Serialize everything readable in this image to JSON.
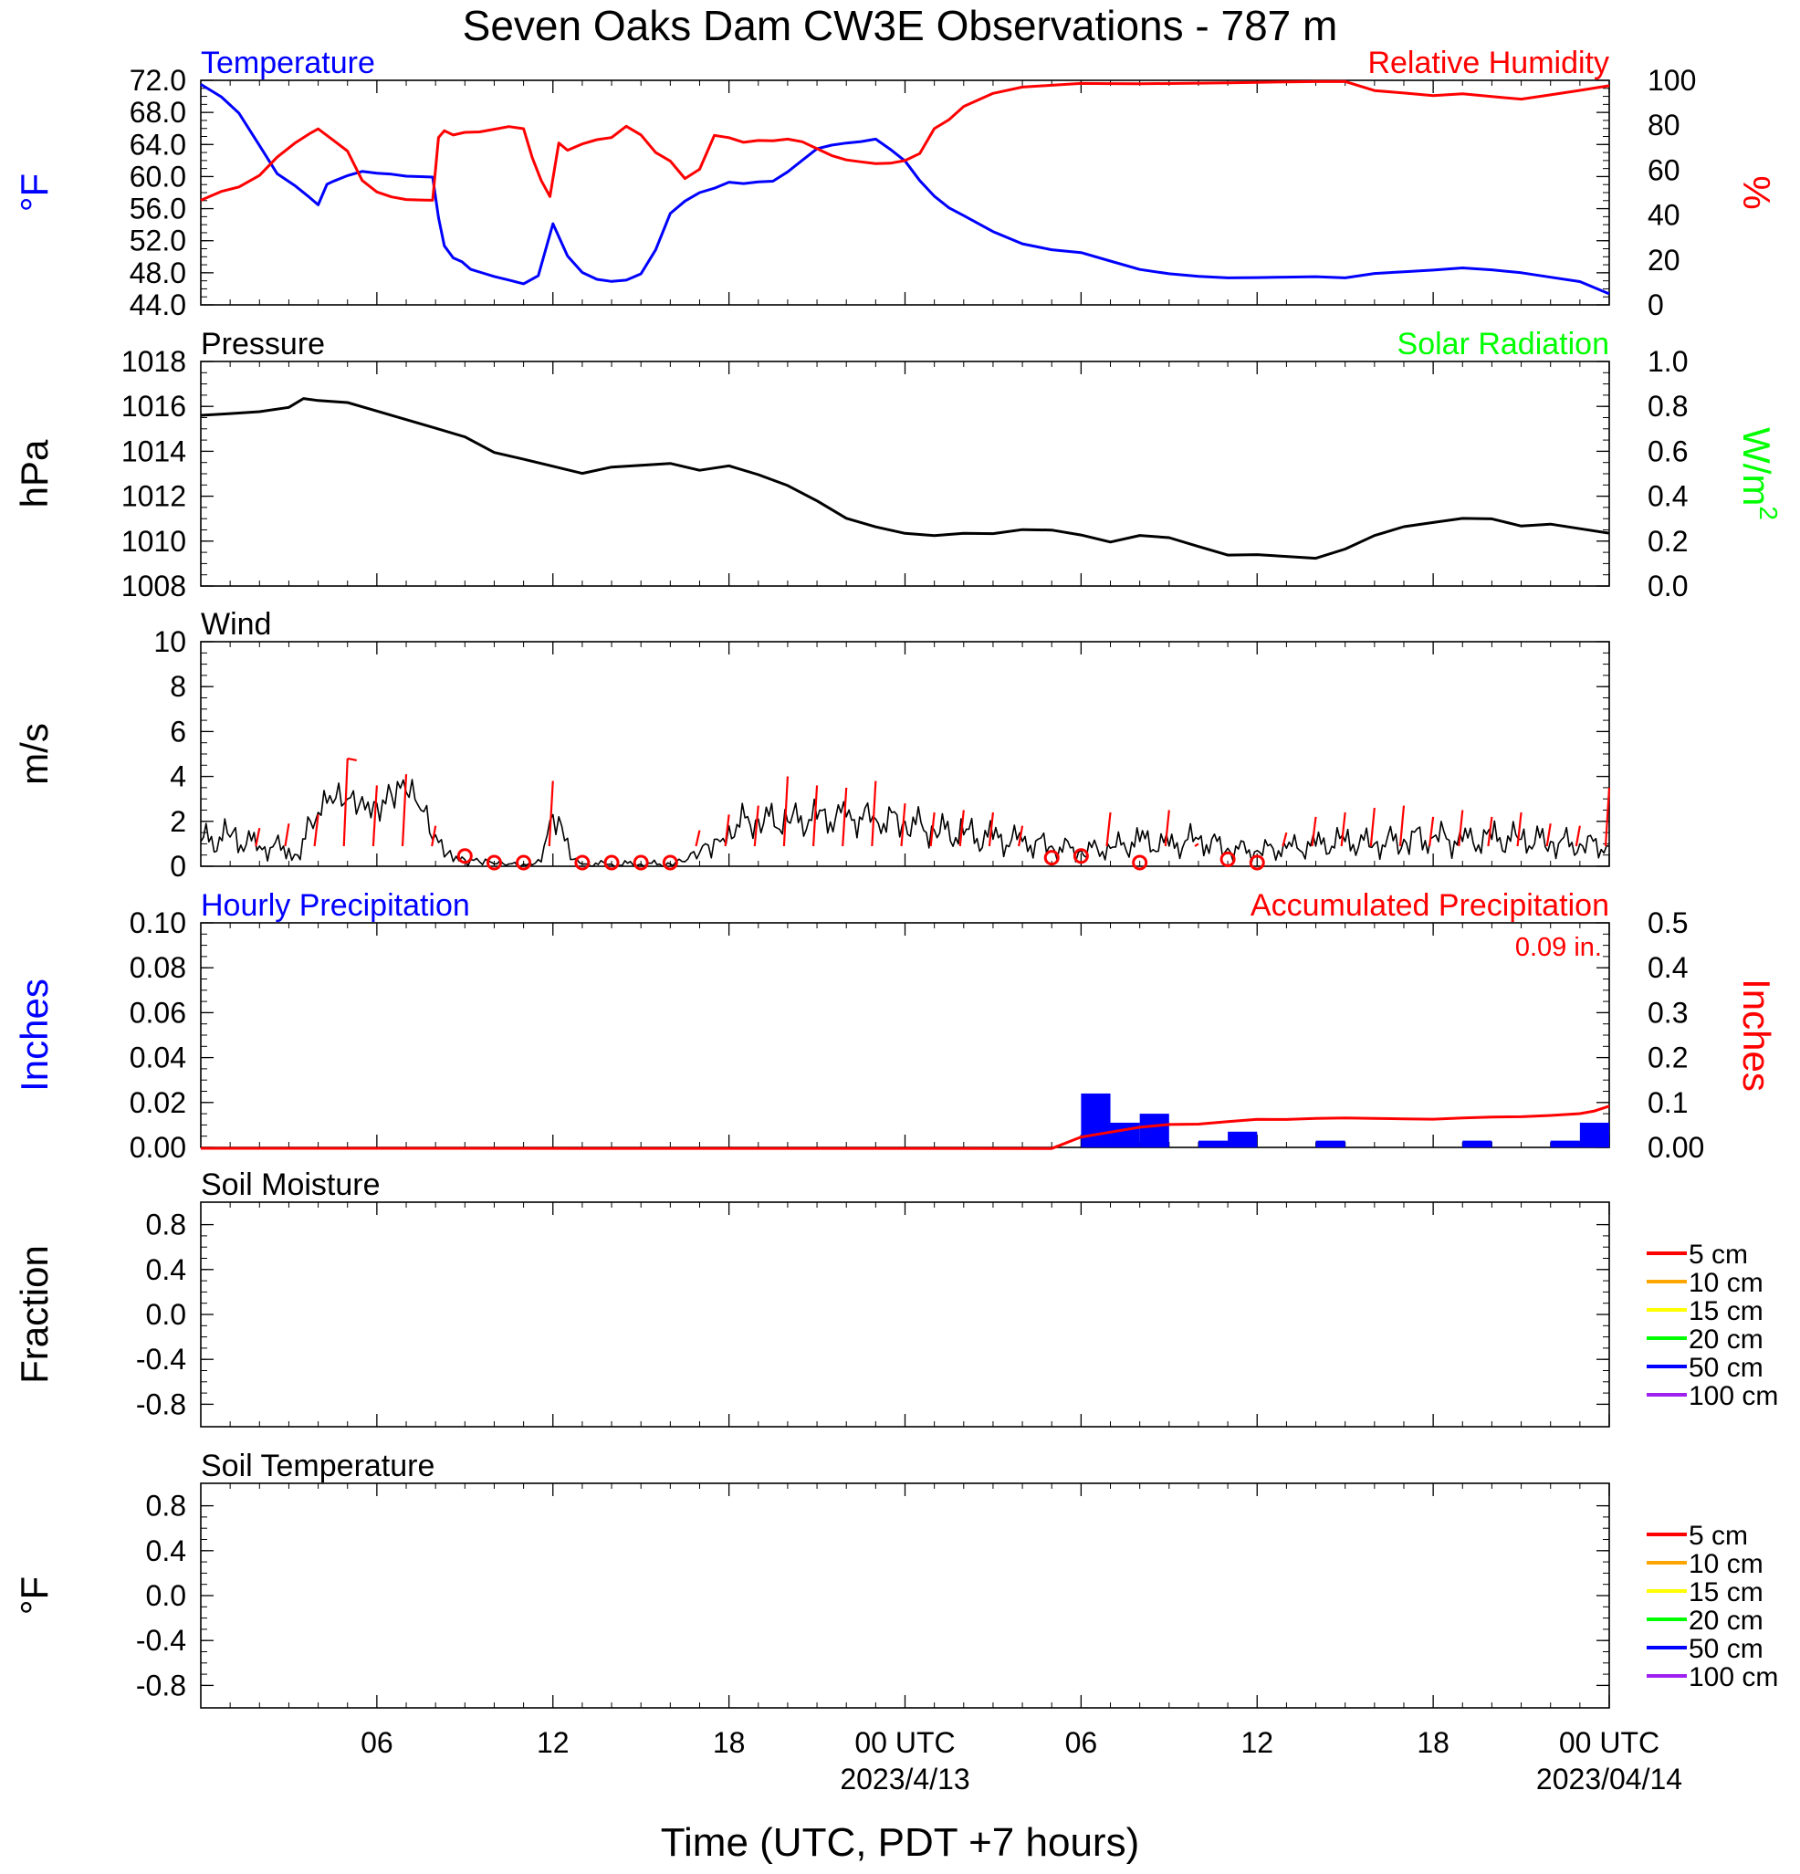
{
  "title": "Seven Oaks Dam CW3E Observations - 787 m",
  "xlabel": "Time (UTC, PDT +7 hours)",
  "x_ticks": [
    {
      "hour": 6,
      "label": "06",
      "date": ""
    },
    {
      "hour": 12,
      "label": "12",
      "date": ""
    },
    {
      "hour": 18,
      "label": "18",
      "date": ""
    },
    {
      "hour": 24,
      "label": "00 UTC",
      "date": "2023/4/13"
    },
    {
      "hour": 30,
      "label": "06",
      "date": ""
    },
    {
      "hour": 36,
      "label": "12",
      "date": ""
    },
    {
      "hour": 42,
      "label": "18",
      "date": ""
    },
    {
      "hour": 48,
      "label": "00 UTC",
      "date": "2023/04/14"
    }
  ],
  "legend": {
    "entries": [
      {
        "label": "5 cm",
        "color": "#ff0000"
      },
      {
        "label": "10 cm",
        "color": "#ffa500"
      },
      {
        "label": "15 cm",
        "color": "#ffff00"
      },
      {
        "label": "20 cm",
        "color": "#00ff00"
      },
      {
        "label": "50 cm",
        "color": "#0000ff"
      },
      {
        "label": "100 cm",
        "color": "#a020f0"
      }
    ]
  },
  "chart_data": [
    {
      "type": "line",
      "title_left": "Temperature",
      "title_right": "Relative Humidity",
      "ylabel": "°F",
      "ylabel_right": "%",
      "ylim": [
        44,
        72
      ],
      "ylim_right": [
        0,
        100
      ],
      "yticks": [
        "72.0",
        "68.0",
        "64.0",
        "60.0",
        "56.0",
        "52.0",
        "48.0",
        "44.0"
      ],
      "yticks_right": [
        "100",
        "80",
        "60",
        "40",
        "20",
        "0"
      ],
      "series": [
        {
          "name": "Temperature",
          "color": "#0000ff",
          "axis": "left",
          "x": [
            0,
            0.7,
            1.3,
            2,
            2.6,
            3.2,
            3.7,
            4,
            4.3,
            4.5,
            5,
            5.5,
            6,
            6.5,
            7,
            7.5,
            7.9,
            8.1,
            8.3,
            8.6,
            8.9,
            9.2,
            9.6,
            10,
            10.5,
            11,
            11.5,
            12,
            12.5,
            13,
            13.5,
            14,
            14.5,
            15,
            15.5,
            16,
            16.5,
            17,
            17.5,
            18,
            18.5,
            19,
            19.5,
            20,
            20.5,
            21,
            21.5,
            22,
            22.5,
            23,
            23.5,
            24,
            24.5,
            25,
            25.5,
            26,
            27,
            28,
            29,
            30,
            31,
            32,
            33,
            34,
            35,
            36,
            37,
            38,
            39,
            40,
            41,
            42,
            43,
            44,
            45,
            46,
            47,
            48
          ],
          "y": [
            71.5,
            70,
            68,
            64,
            60.5,
            59,
            57.5,
            56.5,
            59,
            59.3,
            60,
            60.5,
            60.3,
            60.2,
            60,
            60,
            60,
            55,
            51.5,
            50,
            49.5,
            48.5,
            48,
            47.5,
            47,
            46.5,
            47.5,
            54,
            50,
            48,
            47.2,
            47,
            47.2,
            48,
            51,
            55.5,
            57,
            58,
            58.5,
            59.2,
            59,
            59.2,
            59.3,
            60.5,
            62,
            63.5,
            64,
            64.3,
            64.5,
            64.8,
            63.5,
            62,
            59.5,
            57.5,
            56,
            55,
            53,
            51.5,
            50.8,
            50.5,
            49.5,
            48.5,
            48,
            47.7,
            47.5,
            47.5,
            47.5,
            47.5,
            47.3,
            47.8,
            48,
            48.2,
            48.5,
            48.3,
            48,
            47.5,
            47,
            45.5
          ]
        },
        {
          "name": "Relative Humidity",
          "color": "#ff0000",
          "axis": "right",
          "x": [
            0,
            0.7,
            1.3,
            2,
            2.6,
            3.2,
            3.7,
            4,
            4.5,
            5,
            5.5,
            6,
            6.5,
            7,
            7.5,
            7.9,
            8.1,
            8.3,
            8.6,
            9,
            9.5,
            10,
            10.5,
            11,
            11.3,
            11.6,
            11.9,
            12.2,
            12.5,
            13,
            13.5,
            14,
            14.5,
            15,
            15.5,
            16,
            16.5,
            17,
            17.5,
            18,
            18.5,
            19,
            19.5,
            20,
            20.5,
            21,
            21.5,
            22,
            22.5,
            23,
            23.5,
            24,
            24.5,
            25,
            25.5,
            26,
            27,
            28,
            29,
            30,
            31,
            32,
            33,
            34,
            35,
            36,
            37,
            38,
            39,
            40,
            41,
            42,
            43,
            44,
            45,
            46,
            47,
            48
          ],
          "y": [
            47,
            51,
            53,
            58,
            66,
            72,
            76,
            78,
            73,
            68,
            55,
            50,
            48,
            47,
            47,
            47,
            75,
            78,
            76,
            77,
            77,
            78,
            79,
            78,
            65,
            55,
            48,
            72,
            69,
            72,
            74,
            75,
            80,
            76,
            68,
            64,
            56,
            60,
            75,
            74,
            72,
            73,
            73,
            74,
            73,
            70,
            67,
            65,
            64,
            63,
            63,
            64,
            67,
            78,
            82,
            88,
            94,
            97,
            98,
            99,
            99,
            99,
            99,
            99,
            99,
            99,
            99,
            99,
            99,
            95,
            94,
            93,
            94,
            93,
            92,
            94,
            96,
            98
          ]
        }
      ]
    },
    {
      "type": "line",
      "title_left": "Pressure",
      "title_right": "Solar Radiation",
      "ylabel": "hPa",
      "ylabel_right": "W/m",
      "ylabel_right_sup": "2",
      "ylim": [
        1008,
        1018
      ],
      "ylim_right": [
        0,
        1
      ],
      "yticks": [
        "1018",
        "1016",
        "1014",
        "1012",
        "1010",
        "1008"
      ],
      "yticks_right": [
        "1.0",
        "0.8",
        "0.6",
        "0.4",
        "0.2",
        "0.0"
      ],
      "series": [
        {
          "name": "Pressure",
          "color": "#000000",
          "axis": "left",
          "x": [
            0,
            1,
            2,
            3,
            3.5,
            4,
            5,
            6,
            7,
            8,
            9,
            10,
            11,
            12,
            13,
            14,
            15,
            16,
            17,
            18,
            19,
            20,
            21,
            22,
            23,
            24,
            25,
            26,
            27,
            28,
            29,
            30,
            31,
            32,
            33,
            34,
            35,
            36,
            37,
            38,
            39,
            40,
            41,
            42,
            43,
            44,
            45,
            46,
            47,
            48
          ],
          "y": [
            1015.6,
            1015.7,
            1015.8,
            1016,
            1016.4,
            1016.3,
            1016.2,
            1015.8,
            1015.4,
            1015,
            1014.6,
            1013.9,
            1013.6,
            1013.3,
            1013,
            1013.3,
            1013.4,
            1013.5,
            1013.2,
            1013.4,
            1013,
            1012.5,
            1011.8,
            1011,
            1010.6,
            1010.3,
            1010.2,
            1010.3,
            1010.3,
            1010.5,
            1010.5,
            1010.3,
            1010,
            1010.3,
            1010.2,
            1009.8,
            1009.4,
            1009.4,
            1009.3,
            1009.2,
            1009.6,
            1010.2,
            1010.6,
            1010.8,
            1011,
            1011,
            1010.7,
            1010.8,
            1010.6,
            1010.4
          ]
        }
      ]
    },
    {
      "type": "line",
      "title_left": "Wind",
      "ylabel": "m/s",
      "ylim": [
        0,
        10
      ],
      "yticks": [
        "10",
        "8",
        "6",
        "4",
        "2",
        "0"
      ],
      "series": [
        {
          "name": "Wind",
          "color": "#000000",
          "axis": "left",
          "x": [
            0,
            1,
            2,
            3,
            3.3,
            4,
            4.5,
            5,
            5.5,
            6,
            6.5,
            7,
            7.5,
            8,
            8.5,
            9,
            9.5,
            10,
            10.5,
            11,
            11.5,
            12,
            12.3,
            12.6,
            13,
            14,
            15,
            16,
            16.5,
            17,
            17.5,
            18,
            19,
            20,
            21,
            22,
            23,
            24,
            25,
            26,
            27,
            28,
            29,
            30,
            31,
            32,
            33,
            34,
            35,
            36,
            37,
            38,
            39,
            40,
            41,
            42,
            43,
            44,
            45,
            46,
            47,
            48
          ],
          "y": [
            1.1,
            1.3,
            0.9,
            0.8,
            0.5,
            2.4,
            2.8,
            3,
            3.1,
            2.8,
            3.2,
            3.3,
            2.5,
            1.4,
            0.7,
            0.3,
            0.2,
            0.1,
            0.1,
            0.1,
            0.3,
            2.3,
            1.8,
            0.3,
            0.1,
            0.1,
            0.1,
            0.1,
            0.2,
            0.6,
            1.2,
            1.8,
            2.1,
            2,
            2.1,
            2.2,
            2.1,
            2,
            1.6,
            1.4,
            1.2,
            1.1,
            0.9,
            0.7,
            0.8,
            1.1,
            0.9,
            1.2,
            0.8,
            0.7,
            0.8,
            0.9,
            1.1,
            1,
            1.2,
            1.3,
            1.1,
            1.2,
            1.2,
            1.1,
            1,
            0.9
          ]
        },
        {
          "name": "Wind barbs",
          "color": "#ff0000",
          "type": "wind-barb",
          "x": [
            2,
            3,
            4,
            5,
            6,
            7,
            8,
            9,
            10,
            11,
            12,
            13,
            14,
            15,
            16,
            17,
            18,
            19,
            20,
            21,
            22,
            23,
            24,
            25,
            26,
            27,
            28,
            29,
            30,
            31,
            32,
            33,
            34,
            35,
            36,
            37,
            38,
            39,
            40,
            41,
            42,
            43,
            44,
            45,
            46,
            47,
            48
          ],
          "y": [
            1.7,
            1.9,
            2.3,
            4.8,
            3.6,
            4.1,
            1.8,
            0.4,
            0,
            0,
            3.8,
            0,
            0,
            0,
            0,
            1.6,
            2.3,
            2.7,
            4,
            3.6,
            3.5,
            3.8,
            2.8,
            2.4,
            2.5,
            2.4,
            1.8,
            0.3,
            0.4,
            2.4,
            0,
            2.5,
            1,
            0.2,
            0,
            1.5,
            2.2,
            2.4,
            2.6,
            2.7,
            2.2,
            2.5,
            2.2,
            2.4,
            1.9,
            1.8,
            3.5
          ],
          "calm": [
            false,
            false,
            false,
            false,
            false,
            false,
            false,
            true,
            true,
            true,
            false,
            true,
            true,
            true,
            true,
            false,
            false,
            false,
            false,
            false,
            false,
            false,
            false,
            false,
            false,
            false,
            false,
            true,
            true,
            false,
            true,
            false,
            false,
            true,
            true,
            false,
            false,
            false,
            false,
            false,
            false,
            false,
            false,
            false,
            false,
            false,
            false
          ]
        }
      ]
    },
    {
      "type": "bar",
      "title_left": "Hourly Precipitation",
      "title_right": "Accumulated Precipitation",
      "annotation": "0.09 in.",
      "ylabel": "Inches",
      "ylabel_right": "Inches",
      "ylim": [
        0,
        0.1
      ],
      "ylim_right": [
        0,
        0.5
      ],
      "yticks": [
        "0.10",
        "0.08",
        "0.06",
        "0.04",
        "0.02",
        "0.00"
      ],
      "yticks_right": [
        "0.5",
        "0.4",
        "0.3",
        "0.2",
        "0.1",
        "0.00"
      ],
      "series": [
        {
          "name": "Hourly Precipitation",
          "color": "#0000ff",
          "axis": "left",
          "x": [
            29,
            30,
            31,
            32,
            33,
            34,
            35,
            36,
            37,
            38,
            39,
            40,
            41,
            42,
            43,
            44,
            45,
            46,
            47
          ],
          "values": [
            0,
            0.024,
            0.011,
            0.015,
            0,
            0.003,
            0.007,
            0,
            0,
            0.003,
            0,
            0,
            0,
            0,
            0.003,
            0,
            0,
            0.003,
            0.011
          ]
        },
        {
          "name": "Accumulated Precipitation",
          "color": "#ff0000",
          "axis": "right",
          "x": [
            0,
            29,
            29.2,
            30,
            31,
            32,
            33,
            34,
            35,
            36,
            37,
            38,
            39,
            40,
            41,
            42,
            43,
            44,
            45,
            46,
            47,
            47.5,
            48
          ],
          "y": [
            0,
            0,
            0.005,
            0.025,
            0.035,
            0.045,
            0.05,
            0.05,
            0.055,
            0.06,
            0.06,
            0.063,
            0.065,
            0.065,
            0.065,
            0.065,
            0.068,
            0.07,
            0.07,
            0.072,
            0.075,
            0.08,
            0.09
          ]
        }
      ]
    },
    {
      "type": "line",
      "title_left": "Soil Moisture",
      "ylabel": "Fraction",
      "ylim": [
        -1,
        1
      ],
      "yticks": [
        "0.8",
        "0.4",
        "0.0",
        "-0.4",
        "-0.8"
      ],
      "series": []
    },
    {
      "type": "line",
      "title_left": "Soil Temperature",
      "ylabel": "°F",
      "ylim": [
        -1,
        1
      ],
      "yticks": [
        "0.8",
        "0.4",
        "0.0",
        "-0.4",
        "-0.8"
      ],
      "series": []
    }
  ]
}
